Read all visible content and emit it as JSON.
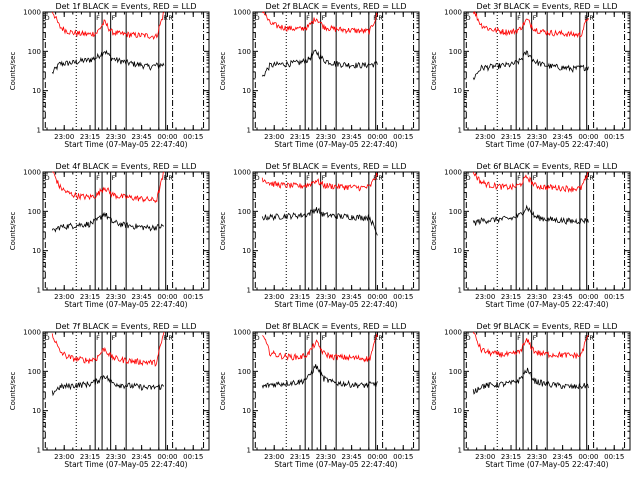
{
  "chart_data": [
    {
      "type": "line",
      "title": "Det 1f BLACK = Events, RED = LLD",
      "xlabel": "Start Time (07-May-05 22:47:40)",
      "ylabel": "Counts/sec",
      "ylim": [
        1,
        1000
      ],
      "log_y": true,
      "xlim": [
        "22:47:40",
        "00:24:10"
      ],
      "x_ticks": [
        "23:00",
        "23:15",
        "23:30",
        "23:45",
        "00:00",
        "00:15"
      ],
      "y_ticks": [
        "1",
        "10",
        "100",
        "1000"
      ],
      "markers": [
        "D",
        "F",
        "F",
        "R",
        "R"
      ],
      "series": [
        {
          "color": "#000000",
          "levels": [
            28,
            48,
            50,
            52,
            58,
            60,
            70,
            105,
            66,
            58,
            52,
            48,
            45,
            40,
            44,
            46
          ],
          "range": [
            "22:53",
            "23:58"
          ]
        },
        {
          "color": "#ff0000",
          "levels": [
            1100,
            420,
            330,
            290,
            280,
            270,
            300,
            560,
            310,
            280,
            270,
            260,
            255,
            250,
            240,
            1000
          ],
          "range": [
            "22:53",
            "23:58"
          ]
        }
      ]
    },
    {
      "type": "line",
      "title": "Det 2f BLACK = Events, RED = LLD",
      "xlabel": "Start Time (07-May-05 22:47:40)",
      "ylabel": "Counts/sec",
      "ylim": [
        1,
        1000
      ],
      "log_y": true,
      "xlim": [
        "22:47:40",
        "00:24:10"
      ],
      "x_ticks": [
        "23:00",
        "23:15",
        "23:30",
        "23:45",
        "00:00",
        "00:15"
      ],
      "y_ticks": [
        "1",
        "10",
        "100",
        "1000"
      ],
      "markers": [
        "D",
        "F",
        "F",
        "R",
        "R"
      ],
      "series": [
        {
          "color": "#000000",
          "levels": [
            22,
            44,
            46,
            48,
            50,
            52,
            62,
            100,
            60,
            52,
            48,
            46,
            45,
            44,
            46,
            48
          ],
          "range": [
            "22:53",
            "00:00"
          ]
        },
        {
          "color": "#ff0000",
          "levels": [
            1200,
            520,
            440,
            400,
            380,
            370,
            420,
            720,
            430,
            380,
            360,
            350,
            340,
            330,
            320,
            900
          ],
          "range": [
            "22:53",
            "00:00"
          ]
        }
      ]
    },
    {
      "type": "line",
      "title": "Det 3f BLACK = Events, RED = LLD",
      "xlabel": "Start Time (07-May-05 22:47:40)",
      "ylabel": "Counts/sec",
      "ylim": [
        1,
        1000
      ],
      "log_y": true,
      "xlim": [
        "22:47:40",
        "00:24:10"
      ],
      "x_ticks": [
        "23:00",
        "23:15",
        "23:30",
        "23:45",
        "00:00",
        "00:15"
      ],
      "y_ticks": [
        "1",
        "10",
        "100",
        "1000"
      ],
      "markers": [
        "D",
        "F",
        "F",
        "R",
        "R"
      ],
      "series": [
        {
          "color": "#000000",
          "levels": [
            20,
            38,
            40,
            42,
            44,
            46,
            56,
            95,
            56,
            46,
            42,
            40,
            38,
            36,
            38,
            40
          ],
          "range": [
            "22:53",
            "00:00"
          ]
        },
        {
          "color": "#ff0000",
          "levels": [
            1150,
            480,
            380,
            340,
            320,
            310,
            360,
            640,
            370,
            320,
            300,
            290,
            280,
            270,
            260,
            800
          ],
          "range": [
            "22:53",
            "00:00"
          ]
        }
      ]
    },
    {
      "type": "line",
      "title": "Det 4f BLACK = Events, RED = LLD",
      "xlabel": "Start Time (07-May-05 22:47:40)",
      "ylabel": "Counts/sec",
      "ylim": [
        1,
        1000
      ],
      "log_y": true,
      "xlim": [
        "22:47:40",
        "00:24:10"
      ],
      "x_ticks": [
        "23:00",
        "23:15",
        "23:30",
        "23:45",
        "00:00",
        "00:15"
      ],
      "y_ticks": [
        "1",
        "10",
        "100",
        "1000"
      ],
      "markers": [
        "D",
        "F",
        "F",
        "R",
        "R"
      ],
      "series": [
        {
          "color": "#000000",
          "levels": [
            30,
            40,
            42,
            44,
            46,
            48,
            58,
            90,
            55,
            48,
            44,
            42,
            40,
            38,
            40,
            42
          ],
          "range": [
            "22:53",
            "23:58"
          ]
        },
        {
          "color": "#ff0000",
          "levels": [
            1100,
            420,
            300,
            260,
            240,
            230,
            260,
            420,
            270,
            240,
            230,
            220,
            210,
            200,
            190,
            1000
          ],
          "range": [
            "22:53",
            "23:58"
          ]
        }
      ]
    },
    {
      "type": "line",
      "title": "Det 5f BLACK = Events, RED = LLD",
      "xlabel": "Start Time (07-May-05 22:47:40)",
      "ylabel": "Counts/sec",
      "ylim": [
        1,
        1000
      ],
      "log_y": true,
      "xlim": [
        "22:47:40",
        "00:24:10"
      ],
      "x_ticks": [
        "23:00",
        "23:15",
        "23:30",
        "23:45",
        "00:00",
        "00:15"
      ],
      "y_ticks": [
        "1",
        "10",
        "100",
        "1000"
      ],
      "markers": [
        "D",
        "F",
        "F",
        "R",
        "R"
      ],
      "series": [
        {
          "color": "#000000",
          "levels": [
            70,
            72,
            74,
            76,
            78,
            80,
            85,
            115,
            82,
            78,
            76,
            74,
            72,
            70,
            72,
            25
          ],
          "range": [
            "22:53",
            "00:00"
          ]
        },
        {
          "color": "#ff0000",
          "levels": [
            700,
            520,
            480,
            460,
            450,
            440,
            470,
            620,
            460,
            440,
            430,
            420,
            410,
            400,
            420,
            900
          ],
          "range": [
            "22:53",
            "00:00"
          ]
        }
      ]
    },
    {
      "type": "line",
      "title": "Det 6f BLACK = Events, RED = LLD",
      "xlabel": "Start Time (07-May-05 22:47:40)",
      "ylabel": "Counts/sec",
      "ylim": [
        1,
        1000
      ],
      "log_y": true,
      "xlim": [
        "22:47:40",
        "00:24:10"
      ],
      "x_ticks": [
        "23:00",
        "23:15",
        "23:30",
        "23:45",
        "00:00",
        "00:15"
      ],
      "y_ticks": [
        "1",
        "10",
        "100",
        "1000"
      ],
      "markers": [
        "D",
        "F",
        "F",
        "R",
        "R"
      ],
      "series": [
        {
          "color": "#000000",
          "levels": [
            50,
            58,
            60,
            62,
            64,
            66,
            78,
            130,
            74,
            66,
            62,
            60,
            58,
            56,
            58,
            60
          ],
          "range": [
            "22:53",
            "00:00"
          ]
        },
        {
          "color": "#ff0000",
          "levels": [
            1000,
            560,
            480,
            440,
            420,
            410,
            460,
            760,
            460,
            420,
            410,
            400,
            390,
            380,
            380,
            900
          ],
          "range": [
            "22:53",
            "00:00"
          ]
        }
      ]
    },
    {
      "type": "line",
      "title": "Det 7f BLACK = Events, RED = LLD",
      "xlabel": "Start Time (07-May-05 22:47:40)",
      "ylabel": "Counts/sec",
      "ylim": [
        1,
        1000
      ],
      "log_y": true,
      "xlim": [
        "22:47:40",
        "00:24:10"
      ],
      "x_ticks": [
        "23:00",
        "23:15",
        "23:30",
        "23:45",
        "00:00",
        "00:15"
      ],
      "y_ticks": [
        "1",
        "10",
        "100",
        "1000"
      ],
      "markers": [
        "D",
        "F",
        "F",
        "R",
        "R"
      ],
      "series": [
        {
          "color": "#000000",
          "levels": [
            28,
            40,
            42,
            44,
            46,
            48,
            56,
            80,
            52,
            46,
            44,
            42,
            40,
            38,
            40,
            42
          ],
          "range": [
            "22:53",
            "23:58"
          ]
        },
        {
          "color": "#ff0000",
          "levels": [
            900,
            320,
            240,
            210,
            200,
            190,
            220,
            380,
            230,
            200,
            190,
            180,
            175,
            170,
            165,
            1000
          ],
          "range": [
            "22:53",
            "23:58"
          ]
        }
      ]
    },
    {
      "type": "line",
      "title": "Det 8f BLACK = Events, RED = LLD",
      "xlabel": "Start Time (07-May-05 22:47:40)",
      "ylabel": "Counts/sec",
      "ylim": [
        1,
        1000
      ],
      "log_y": true,
      "xlim": [
        "22:47:40",
        "00:24:10"
      ],
      "x_ticks": [
        "23:00",
        "23:15",
        "23:30",
        "23:45",
        "00:00",
        "00:15"
      ],
      "y_ticks": [
        "1",
        "10",
        "100",
        "1000"
      ],
      "markers": [
        "D",
        "F",
        "F",
        "R",
        "R"
      ],
      "series": [
        {
          "color": "#000000",
          "levels": [
            40,
            46,
            48,
            50,
            52,
            54,
            70,
            140,
            66,
            54,
            50,
            48,
            46,
            44,
            46,
            48
          ],
          "range": [
            "22:53",
            "00:00"
          ]
        },
        {
          "color": "#ff0000",
          "levels": [
            900,
            300,
            260,
            240,
            235,
            230,
            280,
            560,
            290,
            240,
            230,
            225,
            220,
            215,
            210,
            900
          ],
          "range": [
            "22:53",
            "00:00"
          ]
        }
      ]
    },
    {
      "type": "line",
      "title": "Det 9f BLACK = Events, RED = LLD",
      "xlabel": "Start Time (07-May-05 22:47:40)",
      "ylabel": "Counts/sec",
      "ylim": [
        1,
        1000
      ],
      "log_y": true,
      "xlim": [
        "22:47:40",
        "00:24:10"
      ],
      "x_ticks": [
        "23:00",
        "23:15",
        "23:30",
        "23:45",
        "00:00",
        "00:15"
      ],
      "y_ticks": [
        "1",
        "10",
        "100",
        "1000"
      ],
      "markers": [
        "D",
        "F",
        "F",
        "R",
        "R"
      ],
      "series": [
        {
          "color": "#000000",
          "levels": [
            30,
            42,
            44,
            46,
            48,
            50,
            60,
            110,
            58,
            50,
            46,
            44,
            42,
            40,
            42,
            44
          ],
          "range": [
            "22:53",
            "00:00"
          ]
        },
        {
          "color": "#ff0000",
          "levels": [
            1000,
            360,
            300,
            280,
            270,
            265,
            310,
            620,
            320,
            280,
            270,
            265,
            260,
            255,
            250,
            900
          ],
          "range": [
            "22:53",
            "00:00"
          ]
        }
      ]
    }
  ]
}
